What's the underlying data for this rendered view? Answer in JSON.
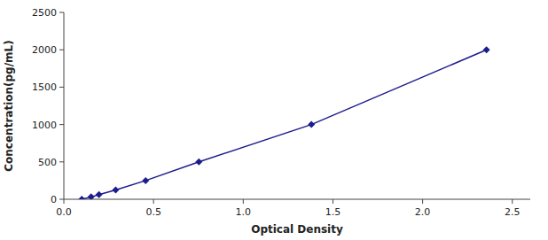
{
  "chart_data": {
    "type": "line",
    "x": [
      0.1,
      0.152,
      0.196,
      0.289,
      0.456,
      0.753,
      1.38,
      2.356
    ],
    "values": [
      0,
      31.25,
      62.5,
      125,
      250,
      500,
      1000,
      2000
    ],
    "color": "#1C1C8C",
    "marker": "diamond",
    "xlabel": "Optical Density",
    "ylabel": "Concentration(pg/mL)",
    "xlim": [
      0,
      2.6
    ],
    "ylim": [
      0,
      2500
    ],
    "xticks": [
      {
        "value": 0,
        "label": "0.0"
      },
      0.5,
      {
        "value": 1,
        "label": "1.0"
      },
      1.5,
      {
        "value": 2,
        "label": "2.0"
      },
      2.5
    ],
    "yticks": [
      0,
      500,
      1000,
      1500,
      2000,
      2500
    ],
    "grid": false
  }
}
